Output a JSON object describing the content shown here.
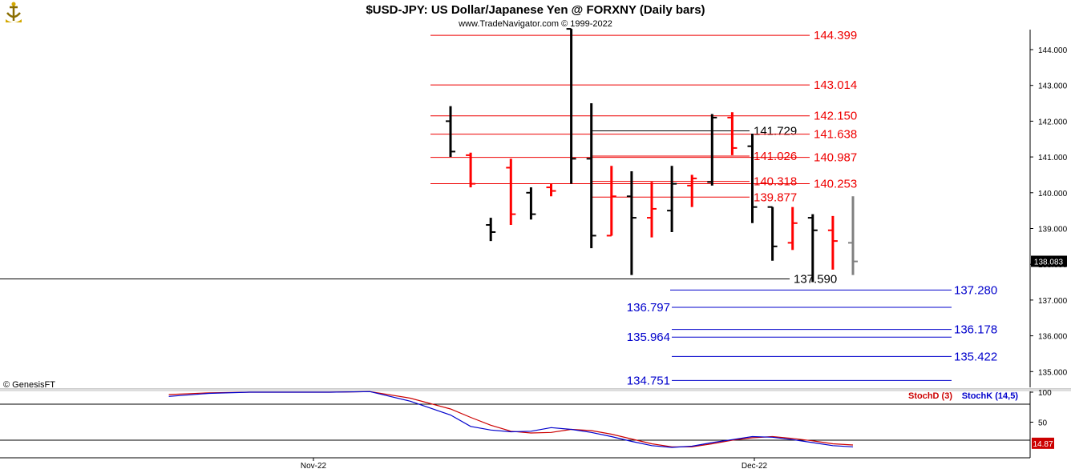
{
  "title": "$USD-JPY:  US Dollar/Japanese Yen @ FORXNY  (Daily bars)",
  "subtitle": "www.TradeNavigator.com © 1999-2022",
  "copyright": "© GenesisFT",
  "logo_icon": "trade-navigator-ship-icon",
  "colors": {
    "up": "#ff0000",
    "down": "#000000",
    "current": "#808080",
    "support": "#0000cc",
    "stochD": "#cc0000",
    "stochK": "#0000cc"
  },
  "chart_data": [
    {
      "type": "ohlc",
      "ylim": [
        134.45,
        144.6
      ],
      "yticks": [
        {
          "value": 135.0,
          "label": "135.000"
        },
        {
          "value": 136.0,
          "label": "136.000"
        },
        {
          "value": 137.0,
          "label": "137.000"
        },
        {
          "value": 138.0,
          "label": "138.000"
        },
        {
          "value": 139.0,
          "label": "139.000"
        },
        {
          "value": 140.0,
          "label": "140.000"
        },
        {
          "value": 141.0,
          "label": "141.000"
        },
        {
          "value": 142.0,
          "label": "142.000"
        },
        {
          "value": 143.0,
          "label": "143.000"
        },
        {
          "value": 144.0,
          "label": "144.000"
        }
      ],
      "xlabels": [
        {
          "index": 1,
          "label": "Nov-22"
        },
        {
          "index": 16,
          "label": "Dec-22"
        }
      ],
      "last_price": "138.083",
      "bars": [
        {
          "i": 0,
          "o": 142.0,
          "h": 142.42,
          "l": 141.0,
          "c": 141.15,
          "color": "down"
        },
        {
          "i": 1,
          "o": 141.05,
          "h": 141.12,
          "l": 140.15,
          "c": 140.25,
          "color": "up"
        },
        {
          "i": 2,
          "o": 139.1,
          "h": 139.3,
          "l": 138.65,
          "c": 138.9,
          "color": "down"
        },
        {
          "i": 3,
          "o": 140.7,
          "h": 140.95,
          "l": 139.1,
          "c": 139.4,
          "color": "up"
        },
        {
          "i": 4,
          "o": 140.0,
          "h": 140.15,
          "l": 139.25,
          "c": 139.4,
          "color": "down"
        },
        {
          "i": 5,
          "o": 140.15,
          "h": 140.25,
          "l": 139.9,
          "c": 140.05,
          "color": "up"
        },
        {
          "i": 6,
          "o": 144.58,
          "h": 144.58,
          "l": 140.25,
          "c": 140.95,
          "color": "down"
        },
        {
          "i": 7,
          "o": 140.95,
          "h": 142.5,
          "l": 138.45,
          "c": 138.8,
          "color": "down"
        },
        {
          "i": 8,
          "o": 138.8,
          "h": 140.75,
          "l": 138.8,
          "c": 139.9,
          "color": "up"
        },
        {
          "i": 9,
          "o": 139.9,
          "h": 140.6,
          "l": 137.7,
          "c": 139.3,
          "color": "down"
        },
        {
          "i": 10,
          "o": 139.3,
          "h": 140.3,
          "l": 138.75,
          "c": 139.55,
          "color": "up"
        },
        {
          "i": 11,
          "o": 139.5,
          "h": 140.75,
          "l": 138.9,
          "c": 140.25,
          "color": "down"
        },
        {
          "i": 12,
          "o": 140.2,
          "h": 140.5,
          "l": 139.6,
          "c": 140.4,
          "color": "up"
        },
        {
          "i": 13,
          "o": 140.3,
          "h": 142.2,
          "l": 140.2,
          "c": 142.1,
          "color": "down"
        },
        {
          "i": 14,
          "o": 142.1,
          "h": 142.25,
          "l": 141.05,
          "c": 141.25,
          "color": "up"
        },
        {
          "i": 15,
          "o": 141.3,
          "h": 141.65,
          "l": 139.15,
          "c": 139.6,
          "color": "down"
        },
        {
          "i": 16,
          "o": 139.6,
          "h": 139.6,
          "l": 138.1,
          "c": 138.5,
          "color": "down"
        },
        {
          "i": 17,
          "o": 138.6,
          "h": 139.6,
          "l": 138.4,
          "c": 139.15,
          "color": "up"
        },
        {
          "i": 18,
          "o": 139.3,
          "h": 139.4,
          "l": 137.5,
          "c": 138.95,
          "color": "down"
        },
        {
          "i": 19,
          "o": 138.95,
          "h": 139.35,
          "l": 137.85,
          "c": 138.65,
          "color": "up"
        },
        {
          "i": 20,
          "o": 138.6,
          "h": 139.9,
          "l": 137.7,
          "c": 138.08,
          "color": "current"
        }
      ],
      "levels": [
        {
          "value": 144.399,
          "label": "144.399",
          "color": "red",
          "from": 6,
          "to": 20,
          "label_pos": "right"
        },
        {
          "value": 143.014,
          "label": "143.014",
          "color": "red",
          "from": 6,
          "to": 20,
          "label_pos": "right"
        },
        {
          "value": 142.15,
          "label": "142.150",
          "color": "red",
          "from": 6,
          "to": 20,
          "label_pos": "right"
        },
        {
          "value": 141.729,
          "label": "141.729",
          "color": "black",
          "from": 13,
          "to": 20,
          "label_pos": "mid"
        },
        {
          "value": 141.638,
          "label": "141.638",
          "color": "red",
          "from": 6,
          "to": 20,
          "label_pos": "right"
        },
        {
          "value": 141.026,
          "label": "141.026",
          "color": "red",
          "from": 6,
          "to": 20,
          "label_pos": "mid"
        },
        {
          "value": 140.987,
          "label": "140.987",
          "color": "red",
          "from": 6,
          "to": 20,
          "label_pos": "right"
        },
        {
          "value": 140.318,
          "label": "140.318",
          "color": "red",
          "from": 13,
          "to": 20,
          "label_pos": "mid"
        },
        {
          "value": 140.253,
          "label": "140.253",
          "color": "red",
          "from": 6,
          "to": 20,
          "label_pos": "right"
        },
        {
          "value": 139.877,
          "label": "139.877",
          "color": "red",
          "from": 13,
          "to": 20,
          "label_pos": "mid"
        },
        {
          "value": 137.59,
          "label": "137.590",
          "color": "black",
          "from": -99,
          "to": 20,
          "label_pos": "mid"
        },
        {
          "value": 137.28,
          "label": "137.280",
          "color": "blue",
          "from": 18,
          "to": 20,
          "label_pos": "far"
        },
        {
          "value": 136.797,
          "label": "136.797",
          "color": "blue",
          "from": 18,
          "to": 20,
          "label_pos": "left"
        },
        {
          "value": 136.178,
          "label": "136.178",
          "color": "blue",
          "from": 18,
          "to": 20,
          "label_pos": "far"
        },
        {
          "value": 135.964,
          "label": "135.964",
          "color": "blue",
          "from": 18,
          "to": 20,
          "label_pos": "left"
        },
        {
          "value": 135.422,
          "label": "135.422",
          "color": "blue",
          "from": 18,
          "to": 20,
          "label_pos": "far"
        },
        {
          "value": 134.751,
          "label": "134.751",
          "color": "blue",
          "from": 18,
          "to": 20,
          "label_pos": "left"
        }
      ]
    },
    {
      "type": "line",
      "ylim": [
        0,
        100
      ],
      "yticks": [
        {
          "value": 100,
          "label": "100"
        },
        {
          "value": 50,
          "label": "50"
        }
      ],
      "hlines": [
        80,
        20
      ],
      "last_value": "14.87",
      "legend": [
        {
          "name": "StochD (3)",
          "color": "stochD"
        },
        {
          "name": "StochK (14,5)",
          "color": "stochK"
        }
      ],
      "x": [
        -14,
        -12,
        -10,
        -8,
        -6,
        -4,
        -2,
        0,
        1,
        2,
        3,
        4,
        5,
        6,
        7,
        8,
        9,
        10,
        11,
        12,
        13,
        14,
        15,
        16,
        17,
        18,
        19,
        20
      ],
      "series": [
        {
          "name": "StochD (3)",
          "color": "stochD",
          "values": [
            96,
            99,
            100,
            100,
            100,
            101,
            90,
            72,
            58,
            45,
            35,
            32,
            33,
            38,
            36,
            30,
            22,
            14,
            9,
            9,
            14,
            20,
            24,
            26,
            23,
            19,
            14,
            12
          ]
        },
        {
          "name": "StochK (14,5)",
          "color": "stochK",
          "values": [
            93,
            98,
            100,
            100,
            100,
            101,
            85,
            62,
            43,
            37,
            34,
            35,
            41,
            38,
            33,
            26,
            18,
            11,
            8,
            10,
            16,
            21,
            26,
            25,
            21,
            16,
            11,
            9
          ]
        }
      ]
    }
  ]
}
